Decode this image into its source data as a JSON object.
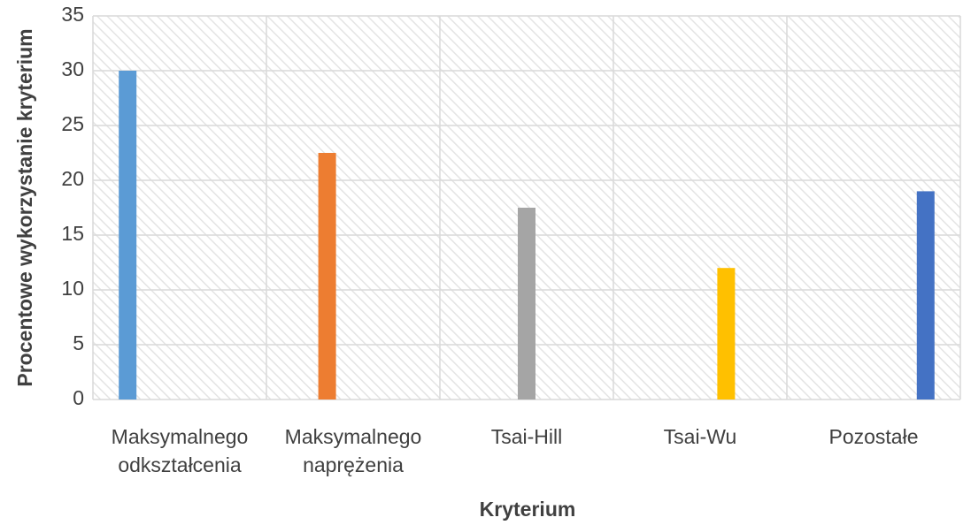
{
  "chart_data": {
    "type": "bar",
    "x_label": "Kryterium",
    "y_label": "Procentowe wykorzystanie kryterium",
    "categories": [
      "Maksymalnego odkształcenia",
      "Maksymalnego naprężenia",
      "Tsai-Hill",
      "Tsai-Wu",
      "Pozostałe"
    ],
    "values": [
      30,
      22.5,
      17.5,
      12,
      19
    ],
    "colors": [
      "#5b9bd5",
      "#ed7d31",
      "#a5a5a5",
      "#ffc000",
      "#4472c4"
    ],
    "ylim": [
      0,
      35
    ],
    "yticks": [
      0,
      5,
      10,
      15,
      20,
      25,
      30,
      35
    ],
    "grid": true
  }
}
